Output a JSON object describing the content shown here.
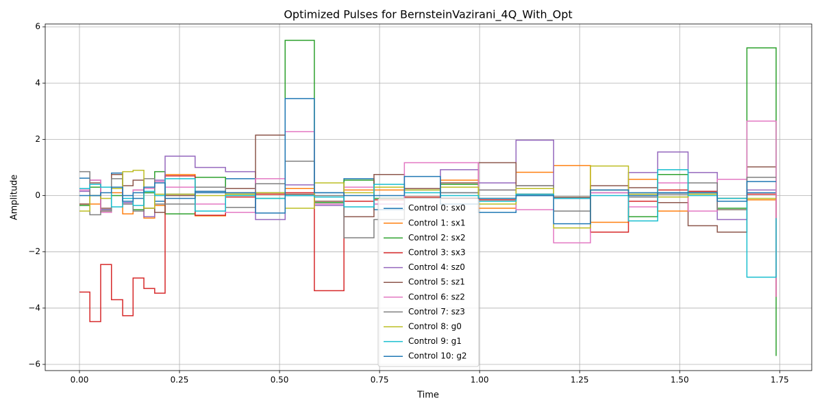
{
  "chart_data": {
    "type": "line",
    "step": "post",
    "title": "Optimized Pulses for BernsteinVazirani_4Q_With_Opt",
    "x_label": "Time",
    "y_label": "Amplitude",
    "x": [
      0,
      0.026,
      0.053,
      0.08,
      0.108,
      0.134,
      0.161,
      0.188,
      0.214,
      0.289,
      0.365,
      0.44,
      0.514,
      0.587,
      0.661,
      0.736,
      0.812,
      0.902,
      0.997,
      1.091,
      1.185,
      1.277,
      1.372,
      1.445,
      1.521,
      1.594,
      1.668,
      1.741
    ],
    "series": [
      {
        "name": "Control 0: sx0",
        "color": "#1f77b4",
        "values": [
          0.62,
          0.0,
          -0.5,
          0.8,
          0.0,
          -0.1,
          0.1,
          -0.2,
          0.05,
          0.1,
          0.6,
          0.1,
          0.0,
          0.1,
          0.6,
          -0.5,
          0.2,
          0.1,
          -0.6,
          0.0,
          -0.1,
          0.1,
          0.1,
          0.1,
          0.15,
          -0.1,
          0.1,
          0.1
        ]
      },
      {
        "name": "Control 1: sx1",
        "color": "#ff7f0e",
        "values": [
          -0.3,
          -0.3,
          -0.55,
          0.1,
          -0.65,
          0.2,
          -0.8,
          -0.35,
          0.75,
          -0.72,
          0.1,
          0.05,
          0.25,
          -0.25,
          0.2,
          0.2,
          0.25,
          0.55,
          -0.45,
          0.83,
          1.07,
          -0.95,
          0.58,
          -0.55,
          0.1,
          -0.5,
          -0.15,
          -0.1
        ]
      },
      {
        "name": "Control 2: sx2",
        "color": "#2ca02c",
        "values": [
          -0.35,
          0.3,
          -0.5,
          0.0,
          -0.2,
          -0.5,
          0.1,
          0.85,
          -0.65,
          0.65,
          0.05,
          -0.1,
          5.52,
          -0.25,
          0.55,
          -0.1,
          -0.05,
          0.4,
          -0.1,
          0.05,
          -0.05,
          0.2,
          -0.75,
          0.75,
          0.1,
          -0.45,
          5.25,
          -5.7
        ]
      },
      {
        "name": "Control 3: sx3",
        "color": "#d62728",
        "values": [
          -3.43,
          -4.48,
          -2.45,
          -3.7,
          -4.27,
          -2.93,
          -3.3,
          -3.47,
          0.7,
          -0.7,
          -0.05,
          0.05,
          0.1,
          -3.38,
          -0.2,
          -0.15,
          -0.05,
          -0.1,
          -0.15,
          0.05,
          -0.1,
          -1.3,
          -0.2,
          0.2,
          0.15,
          -0.1,
          0.05,
          -3.6
        ]
      },
      {
        "name": "Control 4: sz0",
        "color": "#9467bd",
        "values": [
          0.15,
          0.55,
          -0.5,
          0.3,
          -0.25,
          0.2,
          -0.75,
          0.55,
          1.4,
          1.0,
          0.85,
          -0.85,
          0.38,
          -0.35,
          0.3,
          -0.3,
          0.25,
          0.92,
          0.45,
          1.97,
          -0.1,
          0.1,
          0.82,
          1.55,
          0.82,
          -0.85,
          0.2,
          0.2
        ]
      },
      {
        "name": "Control 5: sz1",
        "color": "#8c564b",
        "values": [
          -0.3,
          0.45,
          -0.45,
          0.75,
          0.35,
          0.55,
          -0.45,
          -0.6,
          0.0,
          0.15,
          0.25,
          2.15,
          0.05,
          -0.2,
          -0.75,
          0.75,
          0.25,
          0.45,
          1.17,
          0.35,
          -0.05,
          0.35,
          0.28,
          -0.25,
          -1.07,
          -1.3,
          1.02,
          1.02
        ]
      },
      {
        "name": "Control 6: sz2",
        "color": "#e377c2",
        "values": [
          0.2,
          0.55,
          -0.6,
          0.25,
          -0.3,
          0.2,
          0.25,
          0.5,
          0.3,
          -0.3,
          -0.6,
          0.6,
          2.27,
          -0.3,
          0.3,
          -0.3,
          1.17,
          1.17,
          0.2,
          -0.5,
          -1.68,
          0.1,
          -0.4,
          0.45,
          -0.55,
          0.58,
          2.65,
          -3.6
        ]
      },
      {
        "name": "Control 7: sz3",
        "color": "#7f7f7f",
        "values": [
          0.85,
          -0.68,
          -0.55,
          0.6,
          -0.3,
          -0.55,
          0.6,
          -0.3,
          -0.3,
          0.3,
          -0.42,
          0.42,
          1.22,
          0.0,
          -1.5,
          -0.85,
          -0.1,
          0.1,
          0.2,
          0.35,
          -0.55,
          0.2,
          -0.05,
          0.05,
          0.45,
          -0.5,
          0.65,
          0.65
        ]
      },
      {
        "name": "Control 8: g0",
        "color": "#bcbd22",
        "values": [
          -0.55,
          0.0,
          -0.1,
          0.25,
          0.85,
          0.9,
          -0.45,
          0.05,
          0.05,
          0.0,
          0.05,
          0.1,
          -0.45,
          0.45,
          0.1,
          0.3,
          0.2,
          0.3,
          -0.3,
          0.25,
          -1.15,
          1.05,
          0.05,
          -0.05,
          0.05,
          -0.1,
          -0.1,
          -0.1
        ]
      },
      {
        "name": "Control 9: g1",
        "color": "#17becf",
        "values": [
          0.25,
          0.4,
          0.3,
          -0.4,
          -0.1,
          -0.35,
          0.15,
          0.0,
          0.6,
          -0.55,
          0.0,
          -0.1,
          0.0,
          -0.05,
          -0.4,
          0.4,
          0.1,
          0.0,
          -0.2,
          0.05,
          -0.1,
          0.0,
          -0.9,
          0.92,
          0.0,
          -0.1,
          -2.9,
          -0.8
        ]
      },
      {
        "name": "Control 10: g2",
        "color": "#1f77b4",
        "values": [
          0.0,
          0.0,
          0.1,
          0.3,
          -0.2,
          0.1,
          0.3,
          0.45,
          -0.1,
          0.15,
          0.1,
          -0.62,
          3.45,
          0.1,
          0.0,
          0.0,
          0.68,
          -0.3,
          -0.1,
          0.0,
          -1.0,
          0.2,
          0.0,
          0.1,
          0.1,
          -0.2,
          0.5,
          0.5
        ]
      }
    ],
    "xlim": [
      -0.0856,
      1.83
    ],
    "ylim": [
      -6.22,
      6.1
    ],
    "xticks": [
      {
        "value": 0,
        "label": "0.00"
      },
      0.25,
      {
        "value": 0.5,
        "label": "0.50"
      },
      0.75,
      {
        "value": 1,
        "label": "1.00"
      },
      1.25,
      {
        "value": 1.5,
        "label": "1.50"
      },
      1.75
    ],
    "yticks": [
      {
        "value": -6,
        "label": "−6"
      },
      {
        "value": -4,
        "label": "−4"
      },
      {
        "value": -2,
        "label": "−2"
      },
      0,
      2,
      4,
      6
    ],
    "grid": true,
    "legend": "lower center"
  }
}
